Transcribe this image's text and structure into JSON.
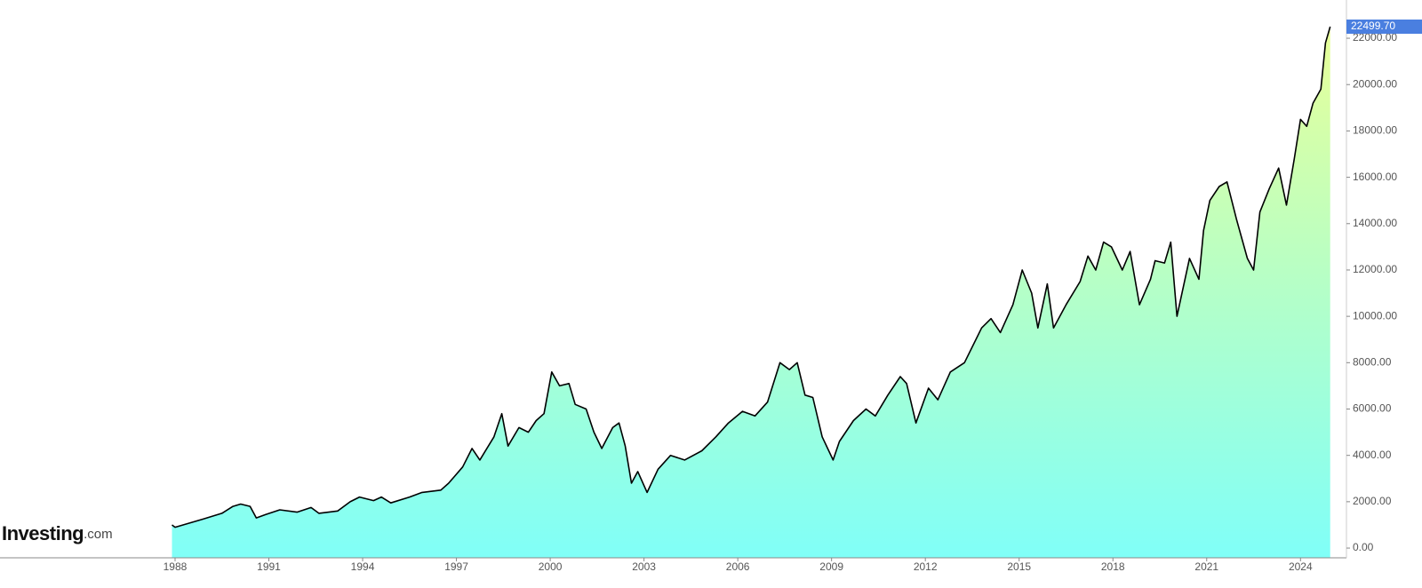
{
  "chart_data": {
    "type": "area",
    "watermark": [
      "Investing",
      ".com"
    ],
    "line_color": "#000000",
    "fill_gradient": [
      "#e8ff98",
      "#80fff8"
    ],
    "price_label": "22499.70",
    "price_label_color": "#4a7fe0",
    "x": [
      1987.9,
      1988.0,
      1988.9,
      1989.5,
      1989.85,
      1990.1,
      1990.4,
      1990.6,
      1990.9,
      1991.35,
      1991.9,
      1992.35,
      1992.6,
      1993.2,
      1993.6,
      1993.9,
      1994.35,
      1994.6,
      1994.9,
      1995.5,
      1995.9,
      1996.5,
      1996.75,
      1997.2,
      1997.5,
      1997.75,
      1998.2,
      1998.45,
      1998.65,
      1999.0,
      1999.3,
      1999.55,
      1999.8,
      2000.05,
      2000.3,
      2000.6,
      2000.8,
      2001.15,
      2001.4,
      2001.65,
      2002.0,
      2002.2,
      2002.4,
      2002.6,
      2002.8,
      2003.1,
      2003.45,
      2003.85,
      2004.3,
      2004.85,
      2005.3,
      2005.7,
      2006.15,
      2006.55,
      2006.95,
      2007.35,
      2007.65,
      2007.9,
      2008.15,
      2008.4,
      2008.7,
      2009.05,
      2009.25,
      2009.7,
      2010.1,
      2010.4,
      2010.8,
      2011.2,
      2011.4,
      2011.7,
      2012.1,
      2012.4,
      2012.8,
      2013.25,
      2013.8,
      2014.1,
      2014.4,
      2014.8,
      2015.1,
      2015.4,
      2015.6,
      2015.9,
      2016.1,
      2016.5,
      2016.95,
      2017.2,
      2017.45,
      2017.7,
      2017.95,
      2018.3,
      2018.55,
      2018.85,
      2019.2,
      2019.35,
      2019.65,
      2019.85,
      2020.05,
      2020.45,
      2020.75,
      2020.9,
      2021.1,
      2021.4,
      2021.65,
      2021.95,
      2022.3,
      2022.5,
      2022.7,
      2023.0,
      2023.3,
      2023.55,
      2023.8,
      2024.0,
      2024.2,
      2024.4,
      2024.65,
      2024.8,
      2024.95
    ],
    "values": [
      1000,
      900,
      1250,
      1500,
      1800,
      1900,
      1800,
      1300,
      1450,
      1650,
      1550,
      1750,
      1500,
      1600,
      2000,
      2200,
      2050,
      2200,
      1950,
      2200,
      2400,
      2500,
      2800,
      3500,
      4300,
      3800,
      4800,
      5800,
      4400,
      5200,
      5000,
      5500,
      5800,
      7600,
      7000,
      7100,
      6200,
      6000,
      5000,
      4300,
      5200,
      5400,
      4400,
      2800,
      3300,
      2400,
      3400,
      4000,
      3800,
      4200,
      4800,
      5400,
      5900,
      5700,
      6300,
      8000,
      7700,
      8000,
      6600,
      6500,
      4800,
      3800,
      4600,
      5500,
      6000,
      5700,
      6600,
      7400,
      7100,
      5400,
      6900,
      6400,
      7600,
      8000,
      9500,
      9900,
      9300,
      10500,
      12000,
      11000,
      9500,
      11400,
      9500,
      10500,
      11500,
      12600,
      12000,
      13200,
      13000,
      12000,
      12800,
      10500,
      11600,
      12400,
      12300,
      13200,
      10000,
      12500,
      11600,
      13700,
      15000,
      15600,
      15800,
      14200,
      12500,
      12000,
      14500,
      15500,
      16400,
      14800,
      16800,
      18500,
      18200,
      19200,
      19800,
      21800,
      22499.7
    ],
    "xlim": [
      1982.4,
      2025.47
    ],
    "ylim": [
      -420,
      23650
    ],
    "xticks": [
      1988,
      1991,
      1994,
      1997,
      2000,
      2003,
      2006,
      2009,
      2012,
      2015,
      2018,
      2021,
      2024
    ],
    "yticks": [
      {
        "value": 0,
        "label": "0.00"
      },
      {
        "value": 2000,
        "label": "2000.00"
      },
      {
        "value": 4000,
        "label": "4000.00"
      },
      {
        "value": 6000,
        "label": "6000.00"
      },
      {
        "value": 8000,
        "label": "8000.00"
      },
      {
        "value": 10000,
        "label": "10000.00"
      },
      {
        "value": 12000,
        "label": "12000.00"
      },
      {
        "value": 14000,
        "label": "14000.00"
      },
      {
        "value": 16000,
        "label": "16000.00"
      },
      {
        "value": 18000,
        "label": "18000.00"
      },
      {
        "value": 20000,
        "label": "20000.00"
      },
      {
        "value": 22000,
        "label": "22000.00"
      }
    ]
  }
}
